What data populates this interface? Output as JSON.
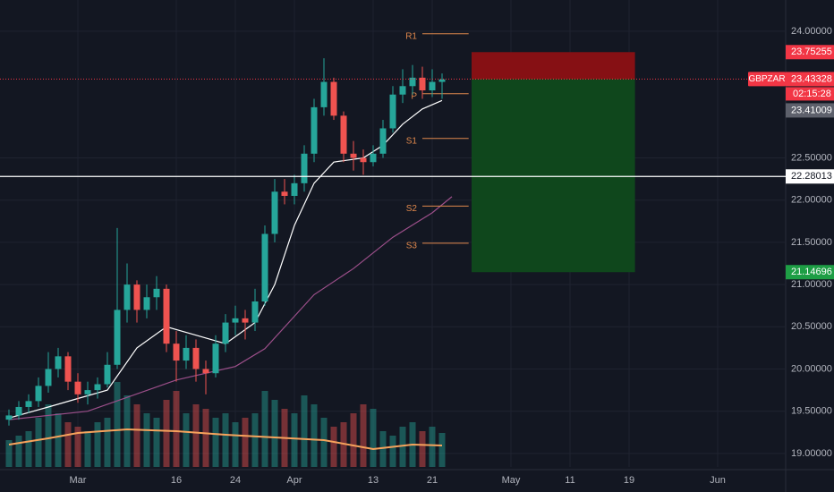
{
  "chart_data": {
    "type": "candlestick",
    "symbol": "GBPZAR",
    "up_color": "#26a69a",
    "down_color": "#ef5350",
    "x": [
      -7,
      -6,
      -5,
      -4,
      -3,
      -2,
      -1,
      0,
      1,
      2,
      3,
      4,
      5,
      6,
      7,
      8,
      9,
      10,
      11,
      12,
      13,
      14,
      15,
      16,
      17,
      18,
      19,
      20,
      21,
      22,
      23,
      24,
      25,
      26,
      27,
      28,
      29,
      30,
      31,
      32,
      33,
      34,
      35,
      36,
      37
    ],
    "ohlc": [
      [
        19.4,
        19.52,
        19.33,
        19.45
      ],
      [
        19.45,
        19.62,
        19.4,
        19.55
      ],
      [
        19.55,
        19.7,
        19.48,
        19.62
      ],
      [
        19.62,
        19.9,
        19.55,
        19.8
      ],
      [
        19.8,
        20.2,
        19.72,
        20.0
      ],
      [
        20.0,
        20.25,
        19.9,
        20.15
      ],
      [
        20.15,
        20.2,
        19.75,
        19.85
      ],
      [
        19.85,
        19.95,
        19.6,
        19.7
      ],
      [
        19.7,
        19.85,
        19.58,
        19.75
      ],
      [
        19.75,
        19.9,
        19.65,
        19.82
      ],
      [
        19.82,
        20.2,
        19.78,
        20.05
      ],
      [
        20.05,
        21.67,
        20.0,
        20.7
      ],
      [
        20.7,
        21.25,
        20.55,
        21.0
      ],
      [
        21.0,
        21.05,
        20.55,
        20.7
      ],
      [
        20.7,
        21.0,
        20.6,
        20.85
      ],
      [
        20.85,
        21.1,
        20.7,
        20.95
      ],
      [
        20.95,
        21.0,
        20.2,
        20.3
      ],
      [
        20.3,
        20.45,
        19.85,
        20.1
      ],
      [
        20.1,
        20.4,
        20.0,
        20.25
      ],
      [
        20.25,
        20.35,
        19.85,
        20.0
      ],
      [
        20.0,
        20.1,
        19.7,
        19.95
      ],
      [
        19.95,
        20.4,
        19.9,
        20.3
      ],
      [
        20.3,
        20.65,
        20.2,
        20.55
      ],
      [
        20.55,
        20.75,
        20.4,
        20.6
      ],
      [
        20.6,
        20.7,
        20.35,
        20.55
      ],
      [
        20.55,
        20.95,
        20.45,
        20.8
      ],
      [
        20.8,
        21.7,
        20.75,
        21.6
      ],
      [
        21.6,
        22.25,
        21.5,
        22.1
      ],
      [
        22.1,
        22.25,
        21.95,
        22.05
      ],
      [
        22.05,
        22.3,
        21.95,
        22.2
      ],
      [
        22.2,
        22.65,
        22.1,
        22.55
      ],
      [
        22.55,
        23.2,
        22.45,
        23.1
      ],
      [
        23.1,
        23.68,
        23.0,
        23.4
      ],
      [
        23.4,
        23.45,
        22.95,
        23.0
      ],
      [
        23.0,
        23.05,
        22.45,
        22.55
      ],
      [
        22.55,
        22.7,
        22.35,
        22.5
      ],
      [
        22.5,
        22.6,
        22.3,
        22.45
      ],
      [
        22.45,
        22.65,
        22.4,
        22.55
      ],
      [
        22.55,
        22.95,
        22.5,
        22.85
      ],
      [
        22.85,
        23.35,
        22.8,
        23.25
      ],
      [
        23.25,
        23.55,
        23.15,
        23.35
      ],
      [
        23.35,
        23.6,
        23.25,
        23.45
      ],
      [
        23.45,
        23.58,
        23.2,
        23.3
      ],
      [
        23.3,
        23.55,
        23.22,
        23.4
      ],
      [
        23.4,
        23.5,
        23.2,
        23.43
      ]
    ],
    "volume": [
      30,
      35,
      40,
      55,
      70,
      60,
      50,
      45,
      40,
      50,
      55,
      95,
      80,
      70,
      60,
      55,
      75,
      85,
      60,
      70,
      65,
      55,
      60,
      50,
      55,
      60,
      85,
      75,
      65,
      60,
      80,
      70,
      55,
      45,
      50,
      60,
      70,
      65,
      40,
      35,
      45,
      50,
      40,
      45,
      38
    ],
    "vlim": [
      0,
      110
    ],
    "indicators": [
      {
        "pane": "price",
        "color": "#ffffff",
        "x": [
          -7,
          -3,
          0,
          3,
          6,
          9,
          12,
          15,
          18,
          20,
          22,
          24,
          26,
          29,
          31,
          33,
          35,
          37
        ],
        "values": [
          19.42,
          19.55,
          19.65,
          19.75,
          20.25,
          20.5,
          20.4,
          20.3,
          20.55,
          21.0,
          21.7,
          22.2,
          22.45,
          22.5,
          22.65,
          22.9,
          23.08,
          23.18
        ]
      },
      {
        "pane": "price",
        "color": "#9c4f8a",
        "x": [
          -7,
          1,
          10,
          16,
          19,
          24,
          28,
          32,
          36,
          38
        ],
        "values": [
          19.4,
          19.5,
          19.87,
          20.03,
          20.24,
          20.88,
          21.19,
          21.56,
          21.85,
          22.04
        ]
      },
      {
        "pane": "volume",
        "color": "#f7a35c",
        "x": [
          -7,
          -3,
          0,
          5,
          10,
          15,
          20,
          25,
          30,
          34,
          37
        ],
        "values": [
          25,
          32,
          38,
          42,
          40,
          36,
          33,
          30,
          20,
          25,
          24
        ]
      }
    ],
    "pivot_color": "#e0884c",
    "pivot_x": [
      35,
      39.7
    ],
    "pivots": [
      {
        "label": "R1",
        "value": 23.97
      },
      {
        "label": "P",
        "value": 23.26
      },
      {
        "label": "S1",
        "value": 22.73
      },
      {
        "label": "S2",
        "value": 21.93
      },
      {
        "label": "S3",
        "value": 21.49
      }
    ],
    "position": {
      "x": [
        40,
        56.6
      ],
      "stop": 23.75255,
      "entry": 23.43328,
      "target": 21.14696
    },
    "last_price": 23.43328,
    "countdown": "02:15:28",
    "price_tag": 23.41009,
    "hline": 22.28013,
    "xlim": [
      -7.909,
      71.909
    ],
    "ylim": [
      18.84,
      24.37
    ],
    "xticks": [
      {
        "value": 0,
        "label": "Mar"
      },
      {
        "value": 10,
        "label": "16"
      },
      {
        "value": 16,
        "label": "24"
      },
      {
        "value": 22,
        "label": "Apr"
      },
      {
        "value": 30,
        "label": "13"
      },
      {
        "value": 36,
        "label": "21"
      },
      {
        "value": 44,
        "label": "May"
      },
      {
        "value": 50,
        "label": "11"
      },
      {
        "value": 56,
        "label": "19"
      },
      {
        "value": 65,
        "label": "Jun"
      }
    ],
    "yticks": [
      {
        "value": 24,
        "label": "24.00000"
      },
      {
        "value": 22.5,
        "label": "22.50000"
      },
      {
        "value": 22,
        "label": "22.00000"
      },
      {
        "value": 21.5,
        "label": "21.50000"
      },
      {
        "value": 21,
        "label": "21.00000"
      },
      {
        "value": 20.5,
        "label": "20.50000"
      },
      {
        "value": 20,
        "label": "20.00000"
      },
      {
        "value": 19.5,
        "label": "19.50000"
      },
      {
        "value": 19,
        "label": "19.00000"
      }
    ]
  }
}
